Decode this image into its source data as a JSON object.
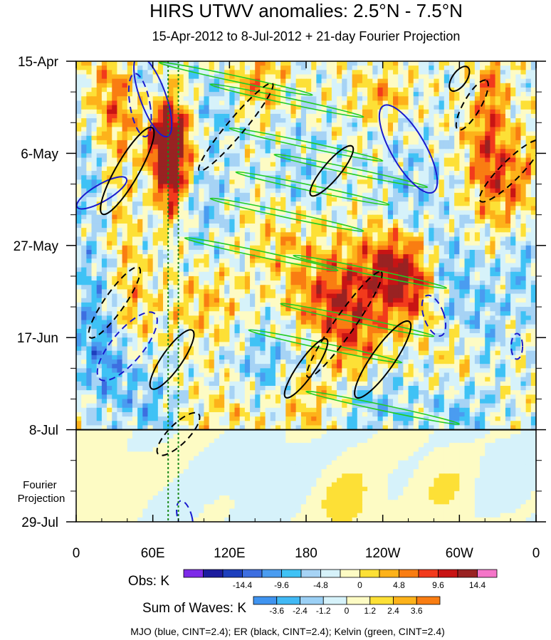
{
  "chart_data": {
    "type": "heatmap",
    "title": "HIRS UTWV anomalies: 2.5°N - 7.5°N",
    "subtitle": "15-Apr-2012 to 8-Jul-2012 + 21-day Fourier Projection",
    "x_ticks": [
      {
        "lon": 0,
        "label": "0"
      },
      {
        "lon": 60,
        "label": "60E"
      },
      {
        "lon": 120,
        "label": "120E"
      },
      {
        "lon": 180,
        "label": "180"
      },
      {
        "lon": 240,
        "label": "120W"
      },
      {
        "lon": 300,
        "label": "60W"
      },
      {
        "lon": 360,
        "label": "0"
      }
    ],
    "xlim": [
      0,
      360
    ],
    "time_ticks": [
      {
        "day": 0,
        "label": "15-Apr"
      },
      {
        "day": 21,
        "label": "6-May"
      },
      {
        "day": 42,
        "label": "27-May"
      },
      {
        "day": 63,
        "label": "17-Jun"
      },
      {
        "day": 84,
        "label": "8-Jul"
      },
      {
        "day": 105,
        "label": "29-Jul"
      }
    ],
    "projection_start_day": 84,
    "projection_label": "Fourier\nProjection",
    "obs_colorbar": {
      "label": "Obs: K",
      "colors": [
        "#7d2ae8",
        "#1c1c9e",
        "#1d3fbd",
        "#3d6ee0",
        "#4a9cf0",
        "#3fc2f5",
        "#a6d3f5",
        "#d6f2fa",
        "#fdfbc4",
        "#fde036",
        "#fdb21a",
        "#f97d12",
        "#f23a1c",
        "#c81414",
        "#992222",
        "#f475c8"
      ],
      "labels": [
        "-14.4",
        "-9.6",
        "-4.8",
        "0",
        "4.8",
        "9.6",
        "14.4"
      ]
    },
    "waves_colorbar": {
      "label": "Sum of Waves: K",
      "colors": [
        "#3f94f0",
        "#41b9f5",
        "#9bd0f5",
        "#d6f2fa",
        "#fdfbc4",
        "#fde036",
        "#fdb21a",
        "#f97d12"
      ],
      "labels": [
        "-3.6",
        "-2.4",
        "-1.2",
        "0",
        "1.2",
        "2.4",
        "3.6"
      ]
    },
    "contours": [
      {
        "name": "MJO",
        "color": "#1a1acd",
        "cint": 2.4
      },
      {
        "name": "ER",
        "color": "#000000",
        "cint": 2.4
      },
      {
        "name": "Kelvin",
        "color": "#22cc22",
        "cint": 2.4
      }
    ],
    "caption": "MJO (blue, CINT=2.4); ER (black, CINT=2.4); Kelvin (green, CINT=2.4)",
    "reference_lons": [
      72,
      80
    ],
    "reference_line_color": "#1a8a1a"
  }
}
